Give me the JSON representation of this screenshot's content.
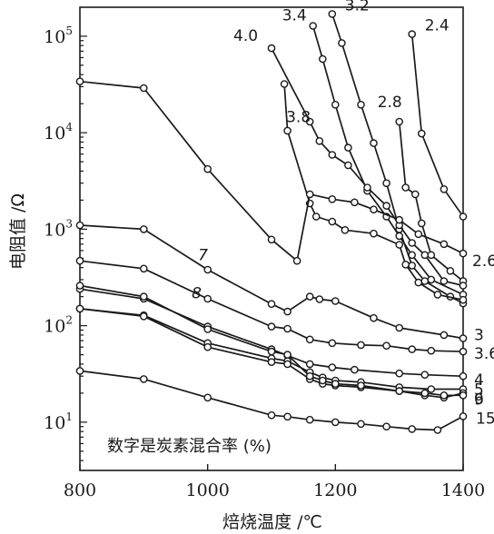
{
  "chart_data": {
    "type": "line",
    "xlabel": "焙烧温度 /℃",
    "ylabel": "电阻值 /Ω",
    "annotation": "数字是炭素混合率 (%)",
    "xlim": [
      800,
      1400
    ],
    "ylim_log10": [
      0.5,
      5.3
    ],
    "yscale": "log",
    "grid": false,
    "x_ticks": [
      "800",
      "1000",
      "1200",
      "1400"
    ],
    "y_ticks": [
      {
        "base": "10",
        "exp": "1",
        "value": 10
      },
      {
        "base": "10",
        "exp": "2",
        "value": 100
      },
      {
        "base": "10",
        "exp": "3",
        "value": 1000
      },
      {
        "base": "10",
        "exp": "4",
        "value": 10000
      },
      {
        "base": "10",
        "exp": "5",
        "value": 100000
      }
    ],
    "series": [
      {
        "name": "2.4",
        "points": [
          [
            1320,
            105000
          ],
          [
            1335,
            9800
          ],
          [
            1370,
            2600
          ],
          [
            1400,
            1350
          ]
        ]
      },
      {
        "name": "2.8",
        "points": [
          [
            1300,
            13000
          ],
          [
            1310,
            2700
          ],
          [
            1325,
            2300
          ],
          [
            1335,
            1150
          ],
          [
            1350,
            540
          ],
          [
            1380,
            370
          ],
          [
            1400,
            290
          ]
        ]
      },
      {
        "name": "3.2",
        "points": [
          [
            1195,
            170000
          ],
          [
            1210,
            85000
          ],
          [
            1240,
            19500
          ],
          [
            1260,
            7800
          ],
          [
            1280,
            3000
          ],
          [
            1300,
            1000
          ],
          [
            1320,
            420
          ],
          [
            1340,
            290
          ],
          [
            1380,
            200
          ],
          [
            1400,
            170
          ]
        ]
      },
      {
        "name": "3.4",
        "points": [
          [
            1165,
            128000
          ],
          [
            1180,
            58000
          ],
          [
            1200,
            19500
          ],
          [
            1220,
            7000
          ],
          [
            1250,
            2500
          ],
          [
            1280,
            1350
          ],
          [
            1300,
            850
          ],
          [
            1320,
            540
          ],
          [
            1350,
            300
          ],
          [
            1400,
            210
          ]
        ]
      },
      {
        "name": "3.8",
        "points": [
          [
            1120,
            32000
          ],
          [
            1125,
            10500
          ],
          [
            1160,
            1850
          ],
          [
            1170,
            1350
          ],
          [
            1195,
            1200
          ],
          [
            1215,
            980
          ],
          [
            1260,
            900
          ],
          [
            1300,
            690
          ],
          [
            1310,
            430
          ],
          [
            1330,
            280
          ],
          [
            1360,
            210
          ],
          [
            1400,
            185
          ]
        ]
      },
      {
        "name": "4.0",
        "points": [
          [
            1100,
            75000
          ],
          [
            1160,
            13000
          ],
          [
            1175,
            8200
          ],
          [
            1195,
            5900
          ],
          [
            1220,
            4600
          ],
          [
            1250,
            2700
          ],
          [
            1280,
            1750
          ],
          [
            1300,
            1100
          ],
          [
            1320,
            720
          ],
          [
            1340,
            540
          ],
          [
            1370,
            290
          ],
          [
            1400,
            260
          ]
        ]
      },
      {
        "name": "2.6",
        "points": [
          [
            800,
            34000
          ],
          [
            900,
            29000
          ],
          [
            1000,
            4200
          ],
          [
            1100,
            780
          ],
          [
            1140,
            470
          ],
          [
            1160,
            2300
          ],
          [
            1195,
            2050
          ],
          [
            1230,
            1900
          ],
          [
            1260,
            1600
          ],
          [
            1300,
            1250
          ],
          [
            1330,
            890
          ],
          [
            1370,
            700
          ],
          [
            1400,
            560
          ]
        ]
      },
      {
        "name": "3",
        "points": [
          [
            800,
            1100
          ],
          [
            900,
            1000
          ],
          [
            1000,
            380
          ],
          [
            1100,
            168
          ],
          [
            1125,
            140
          ],
          [
            1160,
            200
          ],
          [
            1175,
            188
          ],
          [
            1200,
            180
          ],
          [
            1260,
            120
          ],
          [
            1300,
            95
          ],
          [
            1370,
            80
          ],
          [
            1400,
            74
          ]
        ]
      },
      {
        "name": "3.6",
        "points": [
          [
            800,
            470
          ],
          [
            900,
            390
          ],
          [
            1000,
            190
          ],
          [
            1100,
            98
          ],
          [
            1125,
            93
          ],
          [
            1160,
            72
          ],
          [
            1195,
            66
          ],
          [
            1240,
            63
          ],
          [
            1280,
            62
          ],
          [
            1320,
            57
          ],
          [
            1350,
            55
          ],
          [
            1400,
            54
          ]
        ]
      },
      {
        "name": "4",
        "points": [
          [
            800,
            240
          ],
          [
            900,
            190
          ],
          [
            1000,
            98
          ],
          [
            1100,
            57
          ],
          [
            1125,
            49
          ],
          [
            1160,
            40
          ],
          [
            1195,
            37
          ],
          [
            1230,
            35
          ],
          [
            1300,
            32
          ],
          [
            1340,
            31
          ],
          [
            1400,
            30
          ]
        ]
      },
      {
        "name": "5",
        "points": [
          [
            800,
            150
          ],
          [
            900,
            128
          ],
          [
            1000,
            66
          ],
          [
            1100,
            46
          ],
          [
            1125,
            43
          ],
          [
            1160,
            33
          ],
          [
            1180,
            29
          ],
          [
            1200,
            27
          ],
          [
            1240,
            26
          ],
          [
            1300,
            23
          ],
          [
            1350,
            22
          ],
          [
            1400,
            22
          ]
        ]
      },
      {
        "name": "6",
        "points": [
          [
            800,
            150
          ],
          [
            900,
            125
          ],
          [
            1000,
            60
          ],
          [
            1100,
            42
          ],
          [
            1125,
            40
          ],
          [
            1160,
            28
          ],
          [
            1180,
            25
          ],
          [
            1200,
            24
          ],
          [
            1240,
            23
          ],
          [
            1300,
            21
          ],
          [
            1340,
            19
          ],
          [
            1370,
            18
          ],
          [
            1400,
            20
          ]
        ]
      },
      {
        "name": "9",
        "points": [
          [
            800,
            260
          ],
          [
            900,
            200
          ],
          [
            1000,
            92
          ],
          [
            1100,
            54
          ],
          [
            1125,
            50
          ],
          [
            1160,
            30
          ],
          [
            1180,
            27
          ],
          [
            1200,
            25
          ],
          [
            1240,
            24
          ],
          [
            1300,
            21
          ],
          [
            1340,
            20
          ],
          [
            1370,
            19
          ],
          [
            1400,
            19
          ]
        ]
      },
      {
        "name": "15",
        "points": [
          [
            800,
            34
          ],
          [
            900,
            28
          ],
          [
            1000,
            18
          ],
          [
            1100,
            11.8
          ],
          [
            1125,
            11.4
          ],
          [
            1160,
            10.6
          ],
          [
            1200,
            10
          ],
          [
            1240,
            9.6
          ],
          [
            1280,
            9
          ],
          [
            1320,
            8.5
          ],
          [
            1360,
            8.3
          ],
          [
            1400,
            11.5
          ]
        ]
      }
    ],
    "inline_labels": [
      {
        "text": "7",
        "x": 985,
        "y": 500
      },
      {
        "text": "8",
        "x": 975,
        "y": 200
      }
    ]
  }
}
